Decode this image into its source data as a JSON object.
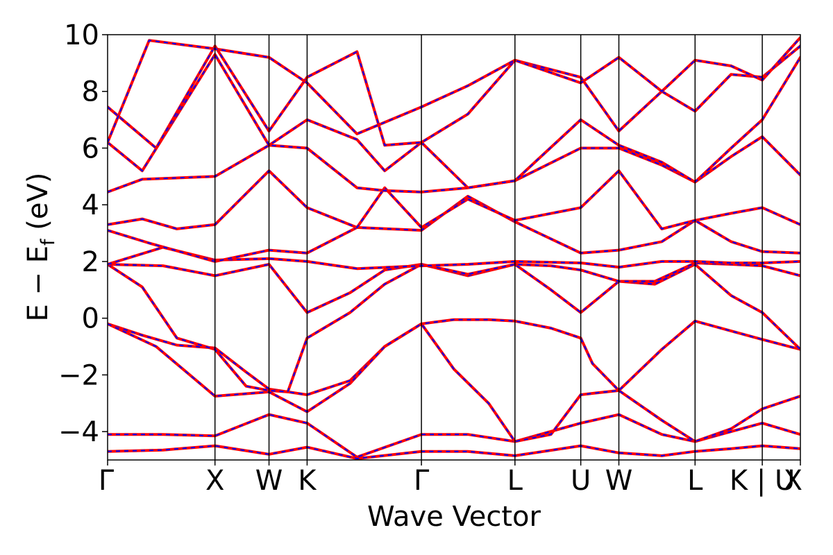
{
  "chart_data": {
    "type": "line",
    "xlabel": "Wave Vector",
    "ylabel_parts": {
      "main": "E − E",
      "sub": "f",
      "unit": " (eV)"
    },
    "ylim": [
      -5,
      10
    ],
    "yticks": [
      -4,
      -2,
      0,
      2,
      4,
      6,
      8,
      10
    ],
    "ytick_labels": [
      "−4",
      "−2",
      "0",
      "2",
      "4",
      "6",
      "8",
      "10"
    ],
    "xlim": [
      0,
      1
    ],
    "kpoints": [
      {
        "label": "Γ",
        "x": 0.0
      },
      {
        "label": "X",
        "x": 0.155
      },
      {
        "label": "W",
        "x": 0.233
      },
      {
        "label": "K",
        "x": 0.288
      },
      {
        "label": "Γ",
        "x": 0.453
      },
      {
        "label": "L",
        "x": 0.588
      },
      {
        "label": "U",
        "x": 0.683
      },
      {
        "label": "W",
        "x": 0.738
      },
      {
        "label": "L",
        "x": 0.848
      },
      {
        "label": "K | U",
        "x": 0.945
      },
      {
        "label": "X",
        "x": 1.0
      }
    ],
    "vlines": [
      0.155,
      0.233,
      0.288,
      0.453,
      0.588,
      0.683,
      0.738,
      0.848,
      0.945
    ],
    "grid": false,
    "colors": {
      "series_a": "#ff0000",
      "series_b": "#0000ff"
    },
    "series": [
      {
        "line_style": "solid",
        "color": "#ff0000",
        "linewidth": 4
      },
      {
        "line_style": "dashed",
        "color": "#0000ff",
        "linewidth": 2
      }
    ],
    "bands": [
      {
        "x": [
          0,
          0.08,
          0.155,
          0.233,
          0.288,
          0.36,
          0.453,
          0.52,
          0.588,
          0.683,
          0.738,
          0.8,
          0.848,
          0.9,
          0.945,
          1.0
        ],
        "y": [
          -4.1,
          -4.1,
          -4.15,
          -3.4,
          -3.7,
          -4.9,
          -4.1,
          -4.1,
          -4.35,
          -3.7,
          -3.4,
          -4.1,
          -4.35,
          -4.0,
          -3.7,
          -4.1
        ]
      },
      {
        "x": [
          0,
          0.08,
          0.155,
          0.233,
          0.288,
          0.36,
          0.453,
          0.52,
          0.588,
          0.683,
          0.738,
          0.8,
          0.848,
          0.9,
          0.945,
          1.0
        ],
        "y": [
          -4.7,
          -4.65,
          -4.5,
          -4.8,
          -4.55,
          -4.95,
          -4.7,
          -4.7,
          -4.85,
          -4.5,
          -4.75,
          -4.85,
          -4.7,
          -4.6,
          -4.5,
          -4.6
        ]
      },
      {
        "x": [
          0,
          0.05,
          0.1,
          0.155,
          0.2,
          0.233,
          0.288,
          0.35,
          0.4,
          0.453,
          0.5,
          0.55,
          0.588,
          0.64,
          0.683,
          0.7,
          0.738,
          0.8,
          0.848,
          0.9,
          0.945,
          1.0
        ],
        "y": [
          -0.2,
          -0.6,
          -0.95,
          -1.05,
          -1.9,
          -2.5,
          -2.7,
          -2.2,
          -1.0,
          -0.2,
          -0.05,
          -0.05,
          -0.1,
          -0.35,
          -0.7,
          -1.6,
          -2.55,
          -1.1,
          -0.1,
          -0.45,
          -0.75,
          -1.1
        ]
      },
      {
        "x": [
          0,
          0.07,
          0.155,
          0.233,
          0.288,
          0.35,
          0.4,
          0.453,
          0.5,
          0.55,
          0.588,
          0.64,
          0.683,
          0.7,
          0.738,
          0.8,
          0.848,
          0.9,
          0.945,
          1.0
        ],
        "y": [
          -0.2,
          -1.0,
          -2.75,
          -2.6,
          -3.3,
          -2.3,
          -1.0,
          -0.2,
          -1.8,
          -3.0,
          -4.35,
          -4.1,
          -2.7,
          -2.65,
          -2.55,
          -3.6,
          -4.35,
          -3.9,
          -3.2,
          -2.75
        ]
      },
      {
        "x": [
          0,
          0.05,
          0.1,
          0.155,
          0.2,
          0.233,
          0.26,
          0.288,
          0.35,
          0.4,
          0.453,
          0.52,
          0.588,
          0.64,
          0.683,
          0.738,
          0.79,
          0.848,
          0.9,
          0.945,
          1.0
        ],
        "y": [
          1.9,
          1.1,
          -0.7,
          -1.1,
          -2.4,
          -2.55,
          -2.6,
          -0.7,
          0.2,
          1.2,
          1.9,
          1.5,
          1.9,
          1.0,
          0.2,
          1.3,
          1.2,
          1.9,
          0.8,
          0.2,
          -1.1
        ]
      },
      {
        "x": [
          0,
          0.08,
          0.155,
          0.233,
          0.288,
          0.35,
          0.4,
          0.453,
          0.52,
          0.588,
          0.64,
          0.683,
          0.738,
          0.79,
          0.848,
          0.9,
          0.945,
          1.0
        ],
        "y": [
          1.9,
          1.85,
          1.5,
          1.9,
          0.2,
          0.9,
          1.7,
          1.9,
          1.55,
          1.9,
          1.85,
          1.7,
          1.3,
          1.3,
          1.95,
          1.9,
          1.85,
          1.5
        ]
      },
      {
        "x": [
          0,
          0.08,
          0.155,
          0.233,
          0.288,
          0.36,
          0.453,
          0.52,
          0.588,
          0.683,
          0.738,
          0.8,
          0.848,
          0.9,
          0.945,
          1.0
        ],
        "y": [
          1.9,
          2.5,
          2.05,
          2.1,
          2.0,
          1.75,
          1.85,
          1.9,
          2.0,
          1.95,
          1.8,
          2.0,
          2.0,
          1.95,
          1.95,
          2.0
        ]
      },
      {
        "x": [
          0,
          0.06,
          0.155,
          0.233,
          0.288,
          0.36,
          0.453,
          0.52,
          0.588,
          0.683,
          0.738,
          0.8,
          0.848,
          0.9,
          0.945,
          1.0
        ],
        "y": [
          3.1,
          2.65,
          2.0,
          2.4,
          2.3,
          3.2,
          3.1,
          4.3,
          3.4,
          2.3,
          2.4,
          2.7,
          3.45,
          2.7,
          2.35,
          2.3
        ]
      },
      {
        "x": [
          0,
          0.05,
          0.1,
          0.155,
          0.233,
          0.288,
          0.36,
          0.4,
          0.453,
          0.52,
          0.588,
          0.683,
          0.738,
          0.8,
          0.848,
          0.9,
          0.945,
          1.0
        ],
        "y": [
          3.3,
          3.5,
          3.15,
          3.3,
          5.2,
          3.9,
          3.2,
          4.6,
          3.2,
          4.2,
          3.45,
          3.9,
          5.2,
          3.15,
          3.45,
          3.7,
          3.9,
          3.3
        ]
      },
      {
        "x": [
          0,
          0.05,
          0.155,
          0.233,
          0.288,
          0.36,
          0.4,
          0.453,
          0.52,
          0.588,
          0.683,
          0.738,
          0.8,
          0.848,
          0.9,
          0.945,
          1.0
        ],
        "y": [
          4.45,
          4.9,
          5.0,
          6.1,
          6.0,
          4.6,
          4.5,
          4.45,
          4.6,
          4.85,
          6.0,
          6.0,
          5.4,
          4.8,
          5.7,
          6.4,
          5.05
        ]
      },
      {
        "x": [
          0,
          0.05,
          0.155,
          0.233,
          0.288,
          0.36,
          0.4,
          0.453,
          0.52,
          0.588,
          0.683,
          0.738,
          0.8,
          0.848,
          0.9,
          0.945,
          1.0
        ],
        "y": [
          6.2,
          5.2,
          9.3,
          6.1,
          7.0,
          6.3,
          5.2,
          6.2,
          4.6,
          4.85,
          7.0,
          6.1,
          5.5,
          4.8,
          6.0,
          7.0,
          9.2
        ]
      },
      {
        "x": [
          0,
          0.07,
          0.155,
          0.233,
          0.288,
          0.36,
          0.4,
          0.453,
          0.52,
          0.588,
          0.683,
          0.738,
          0.8,
          0.848,
          0.9,
          0.945,
          1.0
        ],
        "y": [
          7.45,
          6.0,
          9.6,
          6.6,
          8.5,
          9.4,
          6.1,
          6.2,
          7.2,
          9.1,
          8.5,
          6.6,
          8.0,
          7.3,
          8.6,
          8.5,
          9.6
        ]
      },
      {
        "x": [
          0,
          0.06,
          0.155,
          0.233,
          0.288,
          0.36,
          0.453,
          0.52,
          0.588,
          0.683,
          0.738,
          0.8,
          0.848,
          0.9,
          0.945,
          1.0
        ],
        "y": [
          6.2,
          9.8,
          9.5,
          9.2,
          8.3,
          6.5,
          7.45,
          8.2,
          9.1,
          8.3,
          9.2,
          8.0,
          9.1,
          8.9,
          8.4,
          9.9
        ]
      }
    ]
  }
}
